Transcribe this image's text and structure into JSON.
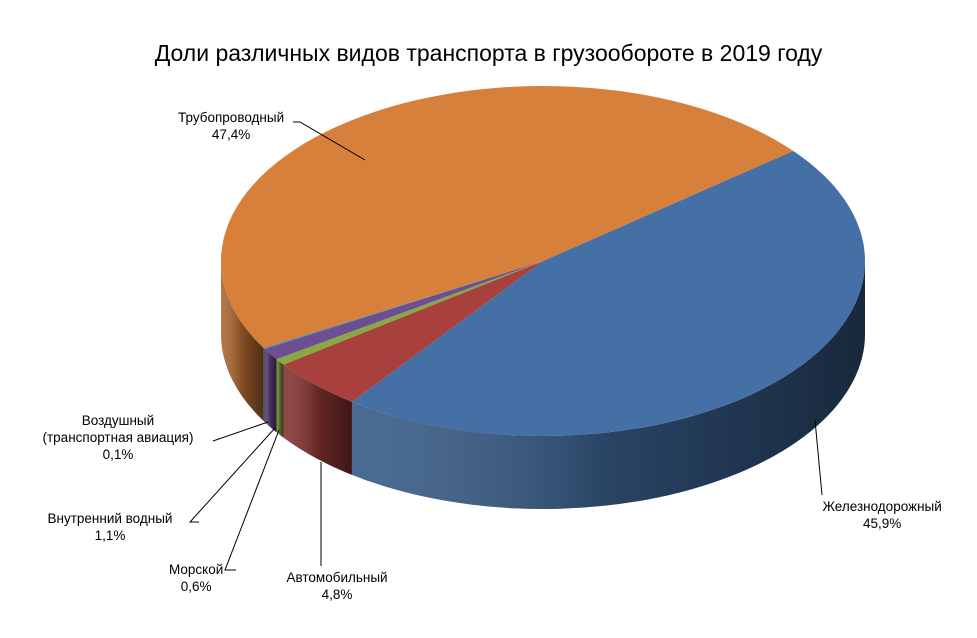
{
  "chart_data": {
    "type": "pie",
    "title": "Доли различных видов транспорта в грузообороте в 2019 году",
    "slices": [
      {
        "label": "Железнодорожный",
        "label_lines": [
          "Железнодорожный"
        ],
        "value": 45.9,
        "value_label": "45,9%",
        "color": "#4470A6"
      },
      {
        "label": "Автомобильный",
        "label_lines": [
          "Автомобильный"
        ],
        "value": 4.8,
        "value_label": "4,8%",
        "color": "#A8403E"
      },
      {
        "label": "Морской",
        "label_lines": [
          "Морской"
        ],
        "value": 0.6,
        "value_label": "0,6%",
        "color": "#88A844"
      },
      {
        "label": "Внутренний водный",
        "label_lines": [
          "Внутренний  водный"
        ],
        "value": 1.1,
        "value_label": "1,1%",
        "color": "#6E4E92"
      },
      {
        "label": "Воздушный (транспортная авиация)",
        "label_lines": [
          "Воздушный",
          "(транспортная авиация)"
        ],
        "value": 0.1,
        "value_label": "0,1%",
        "color": "#3E8CA8"
      },
      {
        "label": "Трубопроводный",
        "label_lines": [
          "Трубопроводный"
        ],
        "value": 47.4,
        "value_label": "47,4%",
        "color": "#D7803C"
      }
    ],
    "legend": "none",
    "three_d": true
  }
}
